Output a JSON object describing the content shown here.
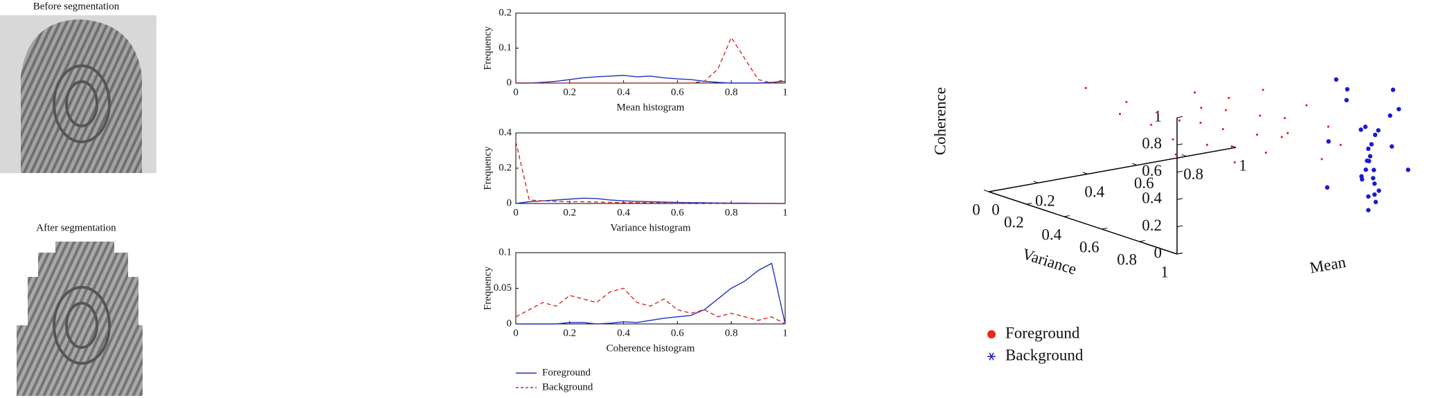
{
  "panels": {
    "before": "Before segmentation",
    "after": "After segmentation"
  },
  "chart_data": [
    {
      "type": "line",
      "xlabel": "Mean histogram",
      "ylabel": "Frequency",
      "xlim": [
        0,
        1
      ],
      "ylim": [
        0,
        0.2
      ],
      "xticks": [
        0,
        0.2,
        0.4,
        0.6,
        0.8,
        1
      ],
      "yticks": [
        0,
        0.1,
        0.2
      ],
      "x": [
        0,
        0.05,
        0.1,
        0.15,
        0.2,
        0.25,
        0.3,
        0.35,
        0.4,
        0.45,
        0.5,
        0.55,
        0.6,
        0.65,
        0.7,
        0.75,
        0.8,
        0.85,
        0.9,
        0.95,
        1
      ],
      "series": [
        {
          "color": "#1f2fbf",
          "linestyle": "solid",
          "values": [
            0,
            0,
            0.002,
            0.005,
            0.01,
            0.015,
            0.018,
            0.02,
            0.022,
            0.018,
            0.02,
            0.015,
            0.012,
            0.01,
            0.005,
            0.002,
            0,
            0,
            0,
            0.002,
            0.005
          ]
        },
        {
          "color": "#d42a2a",
          "linestyle": "dashed",
          "values": [
            0,
            0,
            0,
            0,
            0,
            0,
            0,
            0,
            0,
            0,
            0,
            0,
            0,
            0,
            0.005,
            0.04,
            0.13,
            0.07,
            0.01,
            0,
            0.01
          ]
        }
      ]
    },
    {
      "type": "line",
      "xlabel": "Variance histogram",
      "ylabel": "Frequency",
      "xlim": [
        0,
        1
      ],
      "ylim": [
        0,
        0.4
      ],
      "xticks": [
        0,
        0.2,
        0.4,
        0.6,
        0.8,
        1
      ],
      "yticks": [
        0,
        0.2,
        0.4
      ],
      "x": [
        0,
        0.05,
        0.1,
        0.15,
        0.2,
        0.25,
        0.3,
        0.35,
        0.4,
        0.45,
        0.5,
        0.55,
        0.6,
        0.65,
        0.7,
        0.75,
        0.8,
        0.85,
        0.9,
        0.95,
        1
      ],
      "series": [
        {
          "color": "#1f2fbf",
          "linestyle": "solid",
          "values": [
            0,
            0.01,
            0.015,
            0.02,
            0.025,
            0.03,
            0.028,
            0.02,
            0.015,
            0.012,
            0.01,
            0.008,
            0.006,
            0.005,
            0.004,
            0.003,
            0.002,
            0.002,
            0.001,
            0.001,
            0
          ]
        },
        {
          "color": "#d42a2a",
          "linestyle": "dashed",
          "values": [
            0.35,
            0.02,
            0.015,
            0.012,
            0.01,
            0.01,
            0.008,
            0.006,
            0.005,
            0.004,
            0.004,
            0.003,
            0.002,
            0.002,
            0.001,
            0.001,
            0,
            0,
            0,
            0,
            0
          ]
        }
      ]
    },
    {
      "type": "line",
      "xlabel": "Coherence histogram",
      "ylabel": "Frequency",
      "xlim": [
        0,
        1
      ],
      "ylim": [
        0,
        0.1
      ],
      "xticks": [
        0,
        0.2,
        0.4,
        0.6,
        0.8,
        1
      ],
      "yticks": [
        0,
        0.05,
        0.1
      ],
      "legend": true,
      "x": [
        0,
        0.05,
        0.1,
        0.15,
        0.2,
        0.25,
        0.3,
        0.35,
        0.4,
        0.45,
        0.5,
        0.55,
        0.6,
        0.65,
        0.7,
        0.75,
        0.8,
        0.85,
        0.9,
        0.95,
        1
      ],
      "series": [
        {
          "name": "Foreground",
          "color": "#1f2fbf",
          "linestyle": "solid",
          "values": [
            0,
            0,
            0,
            0,
            0.002,
            0.002,
            0,
            0.001,
            0.003,
            0.002,
            0.005,
            0.008,
            0.01,
            0.012,
            0.02,
            0.035,
            0.05,
            0.06,
            0.075,
            0.085,
            0
          ]
        },
        {
          "name": "Background",
          "color": "#d42a2a",
          "linestyle": "dashed",
          "values": [
            0.01,
            0.02,
            0.03,
            0.025,
            0.04,
            0.035,
            0.03,
            0.045,
            0.05,
            0.03,
            0.025,
            0.035,
            0.02,
            0.015,
            0.02,
            0.01,
            0.015,
            0.01,
            0.005,
            0.01,
            0
          ]
        }
      ]
    },
    {
      "type": "scatter3d",
      "xlabel": "Mean",
      "ylabel": "Variance",
      "zlabel": "Coherence",
      "xlim": [
        0,
        1
      ],
      "ylim": [
        0,
        1
      ],
      "zlim": [
        0,
        1
      ],
      "xticks": [
        0,
        0.2,
        0.4,
        0.6,
        0.8,
        1
      ],
      "yticks": [
        0,
        0.2,
        0.4,
        0.6,
        0.8,
        1
      ],
      "zticks": [
        0,
        0.2,
        0.4,
        0.6,
        0.8,
        1
      ],
      "legend": true,
      "series": [
        {
          "name": "Foreground",
          "color": "#e8281e",
          "marker": "dot",
          "x": [
            0.1,
            0.15,
            0.2,
            0.25,
            0.3,
            0.3,
            0.35,
            0.4,
            0.4,
            0.45,
            0.5,
            0.5,
            0.55,
            0.6,
            0.6,
            0.65,
            0.2,
            0.25,
            0.35,
            0.45,
            0.55,
            0.7,
            0.7,
            0.15,
            0.3,
            0.05,
            0.5,
            0.4
          ],
          "y": [
            0.6,
            0.7,
            0.75,
            0.8,
            0.7,
            0.85,
            0.8,
            0.75,
            0.9,
            0.85,
            0.8,
            0.9,
            0.85,
            0.9,
            0.8,
            0.95,
            0.6,
            0.65,
            0.7,
            0.7,
            0.75,
            0.95,
            0.85,
            0.5,
            0.6,
            0.45,
            0.65,
            0.6
          ],
          "z": [
            0.9,
            0.85,
            0.8,
            0.9,
            0.95,
            0.75,
            0.85,
            0.9,
            0.7,
            0.8,
            0.95,
            0.65,
            0.75,
            0.85,
            0.6,
            0.7,
            0.7,
            0.6,
            0.55,
            0.5,
            0.45,
            0.55,
            0.4,
            0.75,
            0.45,
            0.95,
            0.35,
            0.65
          ]
        },
        {
          "name": "Background",
          "color": "#1a1ad0",
          "marker": "asterisk",
          "x": [
            0.85,
            0.86,
            0.84,
            0.87,
            0.85,
            0.83,
            0.88,
            0.86,
            0.84,
            0.85,
            0.87,
            0.82,
            0.9,
            0.8,
            0.78,
            0.92,
            0.95,
            0.75,
            0.9,
            0.8,
            0.85,
            0.86,
            0.84,
            0.83,
            0.88,
            0.72,
            0.95,
            0.76,
            0.93,
            0.86
          ],
          "y": [
            0.9,
            0.92,
            0.9,
            0.93,
            0.91,
            0.89,
            0.9,
            0.88,
            0.93,
            0.9,
            0.91,
            0.9,
            0.95,
            0.85,
            0.88,
            0.97,
            0.98,
            0.82,
            0.86,
            0.95,
            0.9,
            0.92,
            0.88,
            0.93,
            0.89,
            0.9,
            0.9,
            0.8,
            0.92,
            0.94
          ],
          "z": [
            0.1,
            0.2,
            0.3,
            0.15,
            0.4,
            0.25,
            0.05,
            0.35,
            0.5,
            0.45,
            0.55,
            0.6,
            0.7,
            0.8,
            0.9,
            0.75,
            0.3,
            0.5,
            0.2,
            0.65,
            0,
            0.12,
            0.22,
            0.38,
            0.28,
            1,
            0.85,
            0.15,
            0.45,
            0.6
          ]
        }
      ]
    }
  ]
}
